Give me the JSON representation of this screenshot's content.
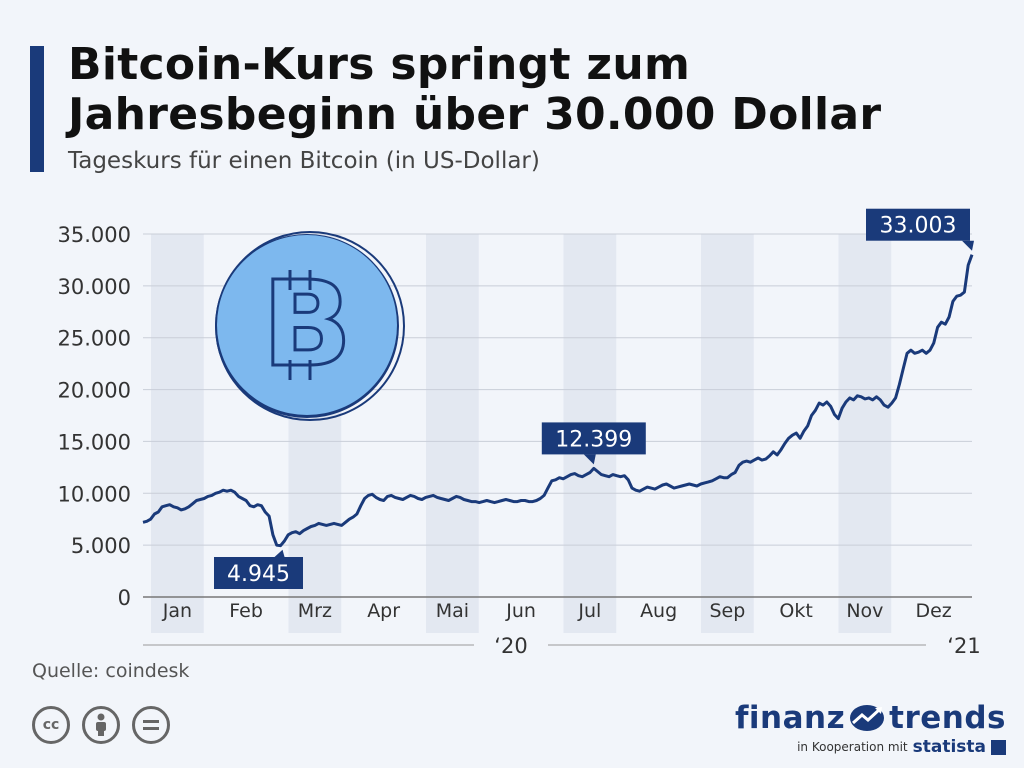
{
  "title": "Bitcoin-Kurs springt zum Jahresbeginn über 30.000 Dollar",
  "subtitle": "Tageskurs für einen Bitcoin (in US-Dollar)",
  "source": "Quelle: coindesk",
  "license_icons": [
    "cc-icon",
    "person-icon",
    "equals-icon"
  ],
  "brand": {
    "part1": "finanz",
    "part2": "trends",
    "coop": "in Kooperation mit",
    "partner": "statista"
  },
  "colors": {
    "line": "#1a3a7a",
    "label_bg": "#1a3a7a",
    "band": "#e3e8f1",
    "grid": "#c9ced8",
    "coin_fill": "#7db8ee",
    "coin_outline": "#1a3a7a",
    "accent": "#1a3a7a"
  },
  "chart_data": {
    "type": "line",
    "title": "Bitcoin-Kurs springt zum Jahresbeginn über 30.000 Dollar",
    "subtitle": "Tageskurs für einen Bitcoin (in US-Dollar)",
    "ylim": [
      0,
      35000
    ],
    "yticks": [
      "0",
      "5.000",
      "10.000",
      "15.000",
      "20.000",
      "25.000",
      "30.000",
      "35.000"
    ],
    "ytick_values": [
      0,
      5000,
      10000,
      15000,
      20000,
      25000,
      30000,
      35000
    ],
    "months": [
      "Jan",
      "Feb",
      "Mrz",
      "Apr",
      "Mai",
      "Jun",
      "Jul",
      "Aug",
      "Sep",
      "Okt",
      "Nov",
      "Dez"
    ],
    "year_labels": [
      "‘20",
      "‘21"
    ],
    "grid": true,
    "series": [
      {
        "values": [
          7200,
          7300,
          7500,
          8000,
          8200,
          8700,
          8800,
          8900,
          8700,
          8600,
          8400,
          8500,
          8700,
          9000,
          9300,
          9400,
          9500,
          9700,
          9800,
          10000,
          10100,
          10300,
          10200,
          10300,
          10100,
          9700,
          9500,
          9300,
          8800,
          8700,
          8900,
          8800,
          8200,
          7800,
          6000,
          5000,
          4945,
          5400,
          6000,
          6200,
          6300,
          6100,
          6400,
          6600,
          6800,
          6900,
          7100,
          7000,
          6900,
          7000,
          7100,
          7000,
          6900,
          7200,
          7500,
          7700,
          8000,
          8800,
          9500,
          9800,
          9900,
          9600,
          9400,
          9300,
          9700,
          9800,
          9600,
          9500,
          9400,
          9600,
          9800,
          9700,
          9500,
          9400,
          9600,
          9700,
          9800,
          9600,
          9500,
          9400,
          9300,
          9500,
          9700,
          9600,
          9400,
          9300,
          9200,
          9200,
          9100,
          9200,
          9300,
          9200,
          9100,
          9200,
          9300,
          9400,
          9300,
          9200,
          9200,
          9300,
          9300,
          9200,
          9200,
          9300,
          9500,
          9800,
          10500,
          11200,
          11300,
          11500,
          11400,
          11600,
          11800,
          11900,
          11700,
          11600,
          11800,
          12000,
          12399,
          12100,
          11800,
          11700,
          11600,
          11800,
          11700,
          11600,
          11700,
          11300,
          10500,
          10300,
          10200,
          10400,
          10600,
          10500,
          10400,
          10600,
          10800,
          10900,
          10700,
          10500,
          10600,
          10700,
          10800,
          10900,
          10800,
          10700,
          10900,
          11000,
          11100,
          11200,
          11400,
          11600,
          11500,
          11500,
          11800,
          12000,
          12700,
          13000,
          13100,
          13000,
          13200,
          13400,
          13200,
          13300,
          13600,
          14000,
          13700,
          14200,
          14800,
          15300,
          15600,
          15800,
          15300,
          16000,
          16500,
          17500,
          18000,
          18700,
          18500,
          18800,
          18400,
          17600,
          17200,
          18200,
          18800,
          19200,
          19000,
          19400,
          19300,
          19100,
          19200,
          19000,
          19300,
          19000,
          18500,
          18300,
          18700,
          19200,
          20500,
          22000,
          23500,
          23800,
          23500,
          23600,
          23800,
          23500,
          23800,
          24500,
          26000,
          26500,
          26300,
          27000,
          28500,
          29000,
          29100,
          29400,
          32000,
          33003
        ]
      }
    ],
    "annotations": [
      {
        "text": "4.945",
        "value": 4945,
        "position": "below"
      },
      {
        "text": "12.399",
        "value": 12399,
        "position": "above"
      },
      {
        "text": "33.003",
        "value": 33003,
        "position": "above"
      }
    ]
  }
}
